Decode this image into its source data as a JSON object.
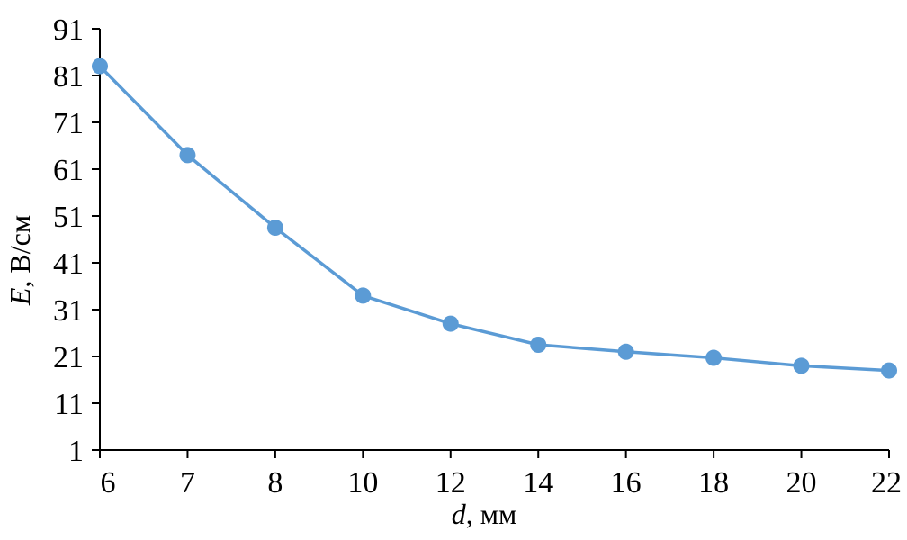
{
  "chart_data": {
    "type": "line",
    "categories": [
      "6",
      "7",
      "8",
      "10",
      "12",
      "14",
      "16",
      "18",
      "20",
      "22"
    ],
    "series": [
      {
        "values": [
          83,
          64,
          48.5,
          34,
          28,
          23.5,
          22,
          20.7,
          19,
          18
        ],
        "color": "#5b9bd5"
      }
    ],
    "y_ticks": [
      1,
      11,
      21,
      31,
      41,
      51,
      61,
      71,
      81,
      91
    ],
    "ylim": [
      1,
      91
    ],
    "xlabel": {
      "var": "d",
      "rest": ", мм"
    },
    "ylabel": {
      "var": "E",
      "rest": ", В/см"
    },
    "grid": false,
    "axis_color": "#000000"
  }
}
